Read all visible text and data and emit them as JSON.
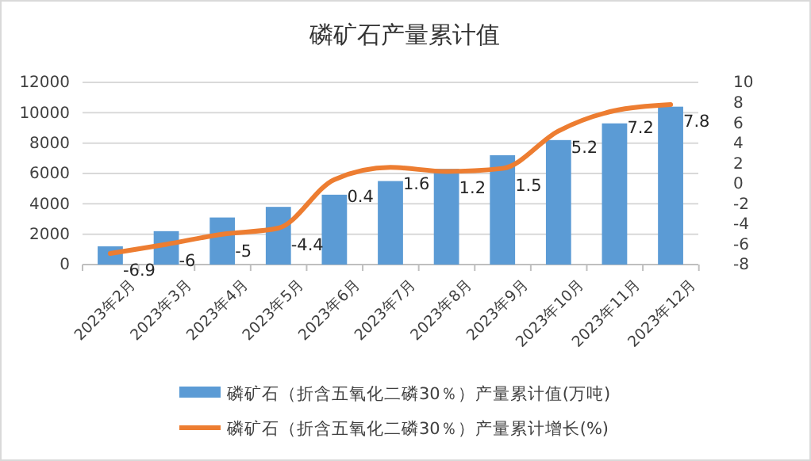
{
  "chart_data": {
    "type": "bar",
    "title": "磷矿石产量累计值",
    "categories": [
      "2023年2月",
      "2023年3月",
      "2023年4月",
      "2023年5月",
      "2023年6月",
      "2023年7月",
      "2023年8月",
      "2023年9月",
      "2023年10月",
      "2023年11月",
      "2023年12月"
    ],
    "series": [
      {
        "name": "磷矿石（折含五氧化二磷30％）产量累计值(万吨)",
        "color": "#5b9bd5",
        "values": [
          1200,
          2200,
          3100,
          3800,
          4600,
          5500,
          6300,
          7200,
          8200,
          9300,
          10400
        ]
      },
      {
        "name": "磷矿石（折含五氧化二磷30％）产量累计增长(%)",
        "type": "line",
        "axis": "y2",
        "color": "#ed7d31",
        "values": [
          -6.9,
          -6,
          -5,
          -4.4,
          0.4,
          1.6,
          1.2,
          1.5,
          5.2,
          7.2,
          7.8
        ],
        "value_labels": [
          "-6.9",
          "-6",
          "-5",
          "-4.4",
          "0.4",
          "1.6",
          "1.2",
          "1.5",
          "5.2",
          "7.2",
          "7.8"
        ]
      }
    ],
    "ylim": [
      0,
      12000
    ],
    "yticks": [
      0,
      2000,
      4000,
      6000,
      8000,
      10000,
      12000
    ],
    "y2lim": [
      -8,
      10
    ],
    "y2ticks": [
      -8,
      -6,
      -4,
      -2,
      0,
      2,
      4,
      6,
      8,
      10
    ],
    "grid": "y",
    "legend": "bottom",
    "marker": "none",
    "line_style": "solid"
  }
}
